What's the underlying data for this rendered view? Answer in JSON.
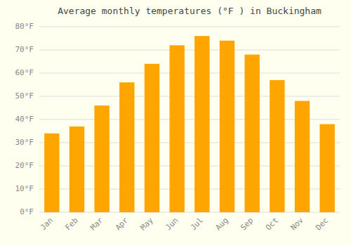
{
  "chart_data": {
    "type": "bar",
    "title": "Average monthly temperatures (°F ) in Buckingham",
    "categories": [
      "Jan",
      "Feb",
      "Mar",
      "Apr",
      "May",
      "Jun",
      "Jul",
      "Aug",
      "Sep",
      "Oct",
      "Nov",
      "Dec"
    ],
    "values": [
      34,
      37,
      46,
      56,
      64,
      72,
      76,
      74,
      68,
      57,
      48,
      38
    ],
    "color": "#FFA500",
    "ylim": [
      0,
      80
    ],
    "yticks": [
      {
        "value": 0,
        "label": "0°F"
      },
      {
        "value": 10,
        "label": "10°F"
      },
      {
        "value": 20,
        "label": "20°F"
      },
      {
        "value": 30,
        "label": "30°F"
      },
      {
        "value": 40,
        "label": "40°F"
      },
      {
        "value": 50,
        "label": "50°F"
      },
      {
        "value": 60,
        "label": "60°F"
      },
      {
        "value": 70,
        "label": "70°F"
      },
      {
        "value": 80,
        "label": "80°F"
      }
    ],
    "grid": true
  }
}
